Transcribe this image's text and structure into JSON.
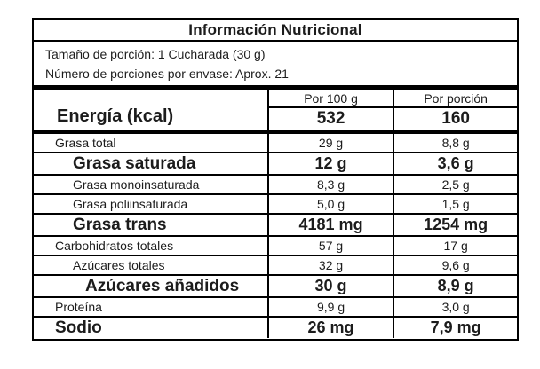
{
  "label": {
    "title": "Información Nutricional",
    "serving_size": "Tamaño de porción: 1 Cucharada (30 g)",
    "servings_per_container": "Número de porciones por envase: Aprox. 21",
    "columns": [
      "Por 100 g",
      "Por porción"
    ],
    "energy": {
      "label": "Energía (kcal)",
      "per_100g": "532",
      "per_portion": "160"
    },
    "rows": [
      {
        "label": "Grasa total",
        "per_100g": "29 g",
        "per_portion": "8,8 g",
        "emphasis": "normal",
        "indent": 1
      },
      {
        "label": "Grasa saturada",
        "per_100g": "12 g",
        "per_portion": "3,6 g",
        "emphasis": "bold",
        "indent": 2
      },
      {
        "label": "Grasa monoinsaturada",
        "per_100g": "8,3 g",
        "per_portion": "2,5 g",
        "emphasis": "normal",
        "indent": 2
      },
      {
        "label": "Grasa poliinsaturada",
        "per_100g": "5,0 g",
        "per_portion": "1,5 g",
        "emphasis": "normal",
        "indent": 2
      },
      {
        "label": "Grasa trans",
        "per_100g": "4181 mg",
        "per_portion": "1254 mg",
        "emphasis": "bold",
        "indent": 2
      },
      {
        "label": "Carbohidratos totales",
        "per_100g": "57 g",
        "per_portion": "17 g",
        "emphasis": "normal",
        "indent": 1
      },
      {
        "label": "Azúcares totales",
        "per_100g": "32 g",
        "per_portion": "9,6 g",
        "emphasis": "normal",
        "indent": 2
      },
      {
        "label": "Azúcares añadidos",
        "per_100g": "30 g",
        "per_portion": "8,9 g",
        "emphasis": "bold",
        "indent": 3
      },
      {
        "label": "Proteína",
        "per_100g": "9,9 g",
        "per_portion": "3,0 g",
        "emphasis": "normal",
        "indent": 1
      },
      {
        "label": "Sodio",
        "per_100g": "26 mg",
        "per_portion": "7,9 mg",
        "emphasis": "bold",
        "indent": 1
      }
    ],
    "colors": {
      "border": "#000000",
      "text": "#1c1c1c",
      "background": "#ffffff"
    }
  }
}
